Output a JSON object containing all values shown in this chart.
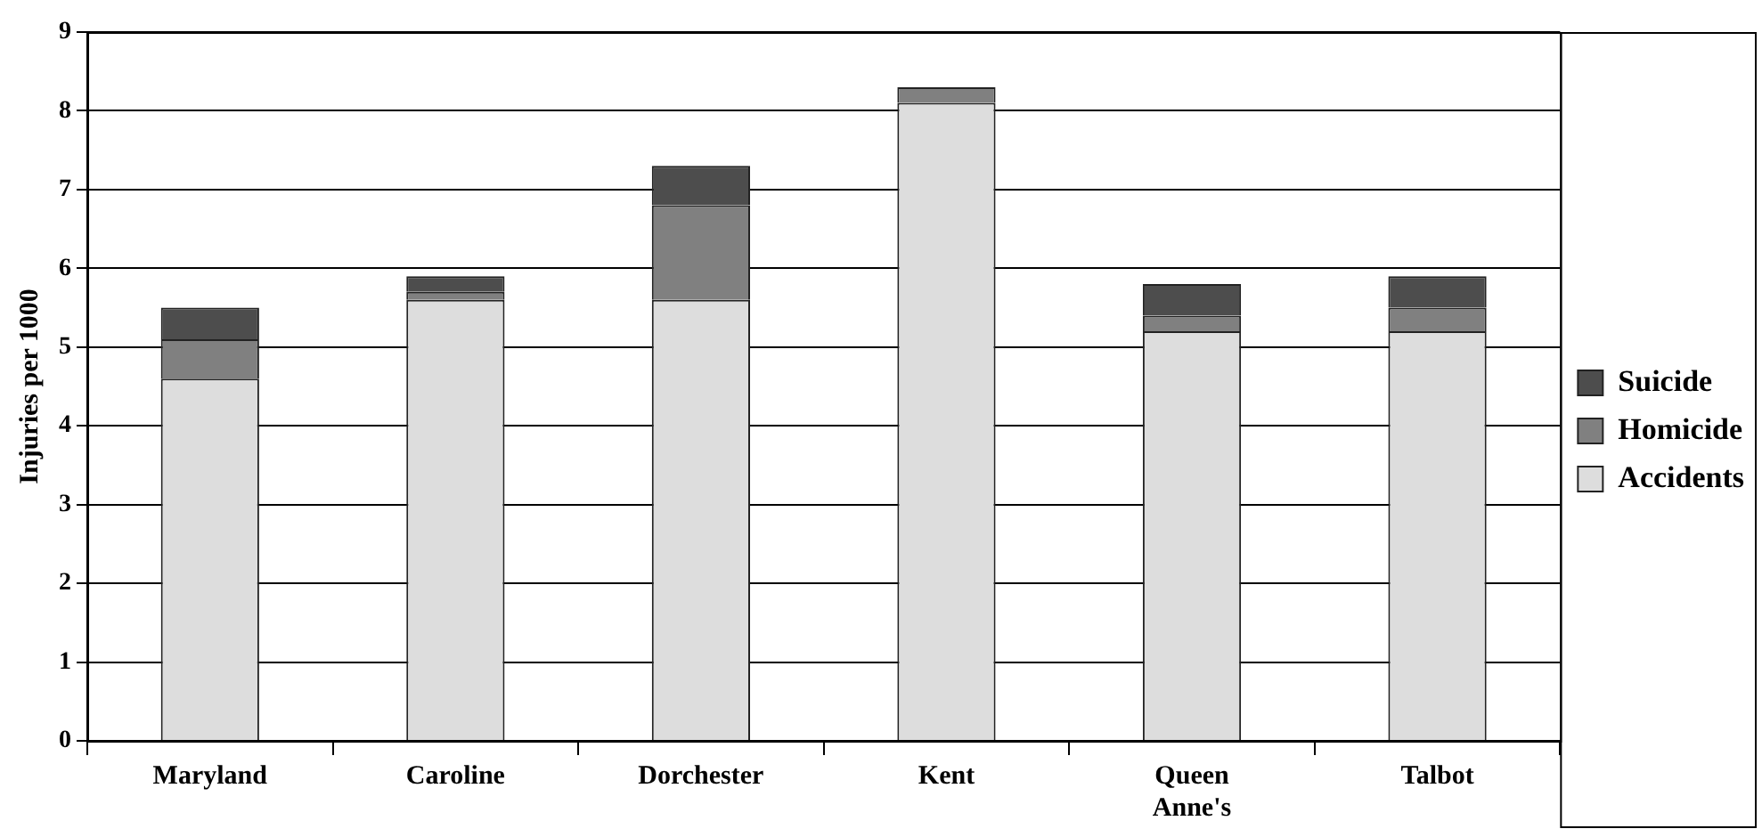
{
  "chart_data": {
    "type": "bar",
    "stacked": true,
    "ylabel": "Injuries per 1000",
    "categories": [
      "Maryland",
      "Caroline",
      "Dorchester",
      "Kent",
      "Queen Anne's",
      "Talbot"
    ],
    "series": [
      {
        "name": "Accidents",
        "color": "#dddddd",
        "values": [
          4.6,
          5.6,
          5.6,
          8.1,
          5.2,
          5.2
        ]
      },
      {
        "name": "Homicide",
        "color": "#808080",
        "values": [
          0.5,
          0.1,
          1.2,
          0.2,
          0.2,
          0.3
        ]
      },
      {
        "name": "Suicide",
        "color": "#4d4d4d",
        "values": [
          0.4,
          0.2,
          0.5,
          0,
          0.4,
          0.4
        ]
      }
    ],
    "ylim": [
      0,
      9
    ],
    "yticks": [
      0,
      1,
      2,
      3,
      4,
      5,
      6,
      7,
      8,
      9
    ],
    "grid": "y",
    "legend": "right"
  }
}
